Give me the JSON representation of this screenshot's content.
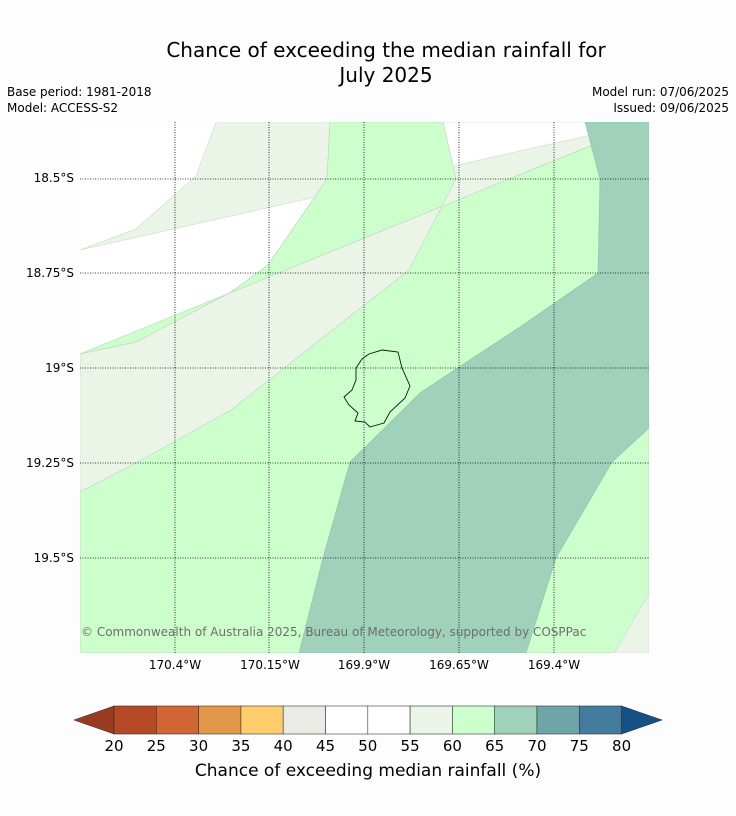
{
  "title_line1": "Chance of exceeding the median rainfall for",
  "title_line2": "July 2025",
  "meta": {
    "base_period": "Base period: 1981-2018",
    "model": "Model: ACCESS-S2",
    "model_run": "Model run: 07/06/2025",
    "issued": "Issued: 09/06/2025"
  },
  "map": {
    "lat_labels": [
      "18.5°S",
      "18.75°S",
      "19°S",
      "19.25°S",
      "19.5°S"
    ],
    "lon_labels": [
      "170.4°W",
      "170.15°W",
      "169.9°W",
      "169.65°W",
      "169.4°W"
    ],
    "credit": "© Commonwealth of Australia 2025, Bureau of Meteorology, supported by COSPPac"
  },
  "colorbar": {
    "title": "Chance of exceeding median rainfall (%)",
    "ticks": [
      "20",
      "25",
      "30",
      "35",
      "40",
      "45",
      "50",
      "55",
      "60",
      "65",
      "70",
      "75",
      "80"
    ],
    "colors": [
      "#b44a25",
      "#cf6634",
      "#e29748",
      "#fdcd6c",
      "#ebebe6",
      "#ffffff",
      "#ffffff",
      "#eaf5e8",
      "#ccffcc",
      "#9fd1bb",
      "#6fa5a8",
      "#437b9c"
    ],
    "under_color": "#993b1e",
    "over_color": "#155087"
  },
  "colors": {
    "zone_45_55": "#ffffff",
    "zone_55_60": "#eaf5e8",
    "zone_60_65": "#ccffcc",
    "zone_65_70": "#9fd1bb"
  }
}
